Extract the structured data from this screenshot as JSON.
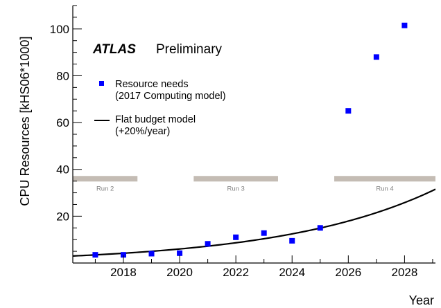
{
  "chart_data": {
    "type": "scatter",
    "ylabel": "CPU Resources [kHS06*1000]",
    "xlabel": "Year",
    "xlim": [
      2016.2,
      2029.1
    ],
    "ylim": [
      0,
      110
    ],
    "x_ticks": [
      2018,
      2020,
      2022,
      2024,
      2026,
      2028
    ],
    "y_ticks": [
      20,
      40,
      60,
      80,
      100
    ],
    "x_tick_labels": [
      "2018",
      "2020",
      "2022",
      "2024",
      "2026",
      "2028"
    ],
    "y_tick_labels": [
      "20",
      "40",
      "60",
      "80",
      "100"
    ],
    "annotation": {
      "experiment": "ATLAS",
      "status": "Preliminary"
    },
    "legend": {
      "placement": "upper-left",
      "entries": [
        {
          "series": "needs",
          "line1": "Resource needs",
          "line2": "(2017 Computing model)"
        },
        {
          "series": "budget",
          "line1": "Flat budget model",
          "line2": "(+20%/year)"
        }
      ]
    },
    "series": [
      {
        "id": "needs",
        "name": "Resource needs (2017 Computing model)",
        "kind": "markers",
        "color": "#0000ff",
        "x": [
          2017,
          2018,
          2019,
          2020,
          2021,
          2022,
          2023,
          2024,
          2025,
          2026,
          2027,
          2028
        ],
        "y": [
          3.5,
          3.5,
          4.0,
          4.2,
          8.2,
          11.0,
          12.8,
          9.5,
          15.0,
          65.0,
          88.0,
          101.5
        ]
      },
      {
        "id": "budget",
        "name": "Flat budget model (+20%/year)",
        "kind": "curve",
        "color": "#000000",
        "base_year": 2016.2,
        "base_value": 3.0,
        "growth": 1.2,
        "x_end": 2029.1
      }
    ],
    "runs": [
      {
        "label": "Run 2",
        "start": 2016.2,
        "end": 2018.5
      },
      {
        "label": "Run 3",
        "start": 2020.5,
        "end": 2023.5
      },
      {
        "label": "Run 4",
        "start": 2025.5,
        "end": 2029.1
      }
    ],
    "runs_level": 36,
    "runs_color": "#c4bcb4",
    "grid": false
  }
}
